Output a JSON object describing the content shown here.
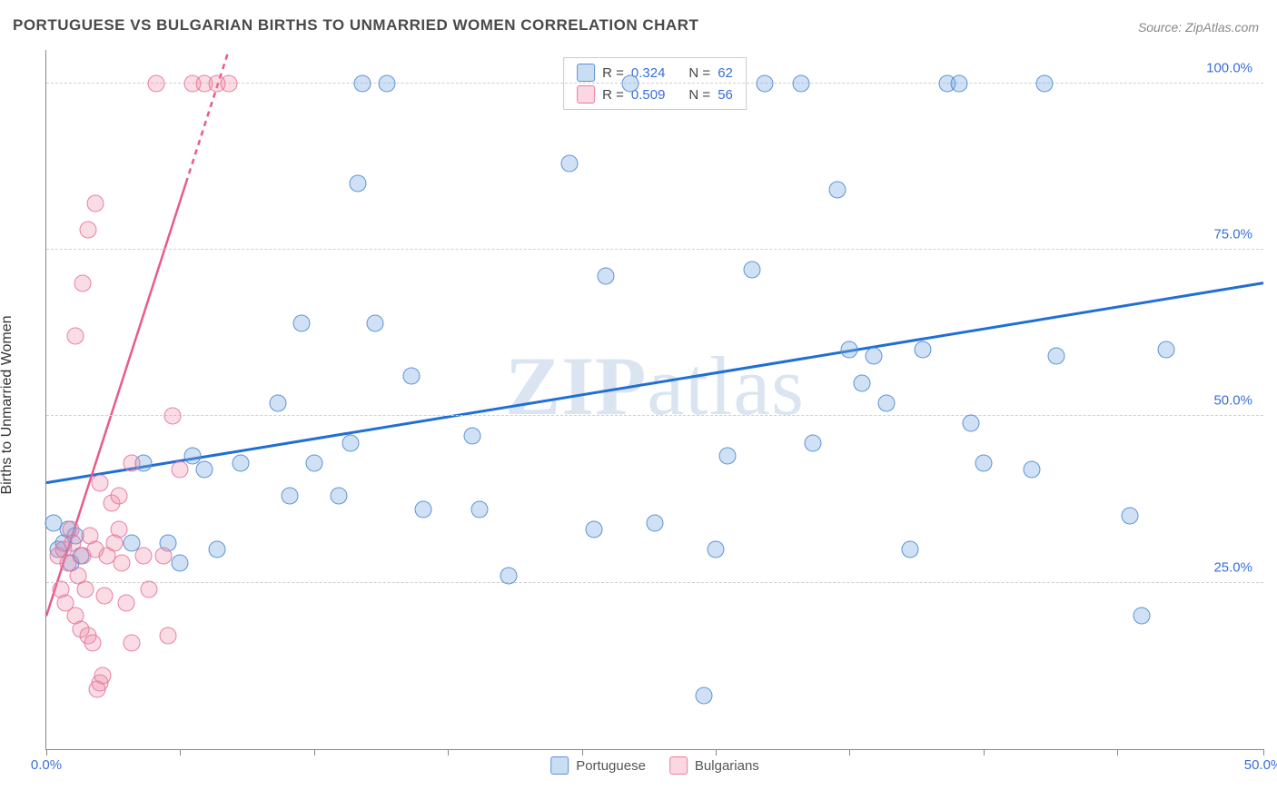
{
  "title": "PORTUGUESE VS BULGARIAN BIRTHS TO UNMARRIED WOMEN CORRELATION CHART",
  "source": "Source: ZipAtlas.com",
  "watermark": {
    "bold": "ZIP",
    "rest": "atlas"
  },
  "yaxis_title": "Births to Unmarried Women",
  "chart": {
    "type": "scatter",
    "xlim": [
      0,
      50
    ],
    "ylim": [
      0,
      105
    ],
    "x_ticks": [
      0,
      5.5,
      11,
      16.5,
      22,
      27.5,
      33,
      38.5,
      44,
      50
    ],
    "x_tick_labels": {
      "0": "0.0%",
      "50": "50.0%"
    },
    "y_gridlines": [
      25,
      50,
      75,
      100
    ],
    "y_tick_labels": {
      "25": "25.0%",
      "50": "50.0%",
      "75": "75.0%",
      "100": "100.0%"
    },
    "background_color": "#ffffff",
    "grid_color": "#d0d0d0",
    "axis_color": "#888888",
    "tick_label_color": "#3a6fd8",
    "title_color": "#4a4a4a",
    "title_fontsize": 17,
    "label_fontsize": 15,
    "point_radius": 9.5,
    "series": [
      {
        "name": "Portuguese",
        "color_fill": "rgba(120,170,225,0.35)",
        "color_stroke": "rgba(80,140,210,0.9)",
        "R": "0.324",
        "N": "62",
        "trend": {
          "x1": 0,
          "y1": 40,
          "x2": 50,
          "y2": 70,
          "color": "#1f6fd4",
          "width": 3
        },
        "points": [
          [
            0.3,
            34
          ],
          [
            0.5,
            30
          ],
          [
            0.7,
            31
          ],
          [
            0.9,
            33
          ],
          [
            1.0,
            28
          ],
          [
            1.2,
            32
          ],
          [
            1.4,
            29
          ],
          [
            3.5,
            31
          ],
          [
            4.0,
            43
          ],
          [
            5.0,
            31
          ],
          [
            5.5,
            28
          ],
          [
            6.0,
            44
          ],
          [
            6.5,
            42
          ],
          [
            7.0,
            30
          ],
          [
            8.0,
            43
          ],
          [
            9.5,
            52
          ],
          [
            10.0,
            38
          ],
          [
            10.5,
            64
          ],
          [
            11.0,
            43
          ],
          [
            12.0,
            38
          ],
          [
            12.5,
            46
          ],
          [
            12.8,
            85
          ],
          [
            13.0,
            100
          ],
          [
            13.5,
            64
          ],
          [
            14.0,
            100
          ],
          [
            15.0,
            56
          ],
          [
            15.5,
            36
          ],
          [
            17.5,
            47
          ],
          [
            17.8,
            36
          ],
          [
            19.0,
            26
          ],
          [
            21.5,
            88
          ],
          [
            22.5,
            33
          ],
          [
            23.0,
            71
          ],
          [
            24.0,
            100
          ],
          [
            25.0,
            34
          ],
          [
            27.0,
            8
          ],
          [
            27.5,
            30
          ],
          [
            28.0,
            44
          ],
          [
            29.0,
            72
          ],
          [
            29.5,
            100
          ],
          [
            31.0,
            100
          ],
          [
            31.5,
            46
          ],
          [
            32.5,
            84
          ],
          [
            33.0,
            60
          ],
          [
            33.5,
            55
          ],
          [
            34.0,
            59
          ],
          [
            34.5,
            52
          ],
          [
            35.5,
            30
          ],
          [
            36.0,
            60
          ],
          [
            37.0,
            100
          ],
          [
            37.5,
            100
          ],
          [
            38.0,
            49
          ],
          [
            38.5,
            43
          ],
          [
            40.5,
            42
          ],
          [
            41.0,
            100
          ],
          [
            41.5,
            59
          ],
          [
            44.5,
            35
          ],
          [
            45.0,
            20
          ],
          [
            46.0,
            60
          ]
        ]
      },
      {
        "name": "Bulgarians",
        "color_fill": "rgba(240,140,170,0.3)",
        "color_stroke": "rgba(230,110,150,0.85)",
        "R": "0.509",
        "N": "56",
        "trend": {
          "x1": 0,
          "y1": 20,
          "x2": 7.5,
          "y2": 105,
          "color": "#e85a8a",
          "width": 2.5,
          "dashed_above": 85
        },
        "points": [
          [
            0.5,
            29
          ],
          [
            0.6,
            24
          ],
          [
            0.7,
            30
          ],
          [
            0.8,
            22
          ],
          [
            0.9,
            28
          ],
          [
            1.0,
            33
          ],
          [
            1.1,
            31
          ],
          [
            1.2,
            20
          ],
          [
            1.3,
            26
          ],
          [
            1.4,
            18
          ],
          [
            1.5,
            29
          ],
          [
            1.6,
            24
          ],
          [
            1.7,
            17
          ],
          [
            1.8,
            32
          ],
          [
            1.9,
            16
          ],
          [
            2.0,
            30
          ],
          [
            2.1,
            9
          ],
          [
            2.2,
            10
          ],
          [
            2.3,
            11
          ],
          [
            2.4,
            23
          ],
          [
            2.5,
            29
          ],
          [
            2.7,
            37
          ],
          [
            2.8,
            31
          ],
          [
            3.0,
            38
          ],
          [
            3.1,
            28
          ],
          [
            3.3,
            22
          ],
          [
            3.5,
            16
          ],
          [
            1.2,
            62
          ],
          [
            1.5,
            70
          ],
          [
            1.7,
            78
          ],
          [
            2.0,
            82
          ],
          [
            2.2,
            40
          ],
          [
            3.0,
            33
          ],
          [
            3.5,
            43
          ],
          [
            4.0,
            29
          ],
          [
            4.2,
            24
          ],
          [
            4.5,
            100
          ],
          [
            4.8,
            29
          ],
          [
            5.0,
            17
          ],
          [
            5.2,
            50
          ],
          [
            5.5,
            42
          ],
          [
            6.0,
            100
          ],
          [
            6.5,
            100
          ],
          [
            7.0,
            100
          ],
          [
            7.5,
            100
          ]
        ]
      }
    ],
    "legend_top": [
      {
        "swatch": "blue",
        "r_label": "R =",
        "r_val": "0.324",
        "n_label": "N =",
        "n_val": "62"
      },
      {
        "swatch": "pink",
        "r_label": "R =",
        "r_val": "0.509",
        "n_label": "N =",
        "n_val": "56"
      }
    ],
    "legend_bottom": [
      {
        "swatch": "blue",
        "label": "Portuguese"
      },
      {
        "swatch": "pink",
        "label": "Bulgarians"
      }
    ]
  }
}
